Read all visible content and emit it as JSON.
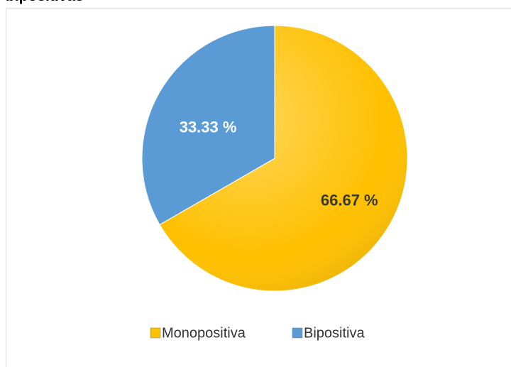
{
  "chart_data": {
    "type": "pie",
    "title": "bipositivas",
    "categories": [
      "Monopositiva",
      "Bipositiva"
    ],
    "values": [
      66.67,
      33.33
    ],
    "value_labels": [
      "66.67 %",
      "33.33 %"
    ],
    "colors": [
      "#FFC000",
      "#5B9BD5"
    ],
    "legend": "bottom"
  }
}
